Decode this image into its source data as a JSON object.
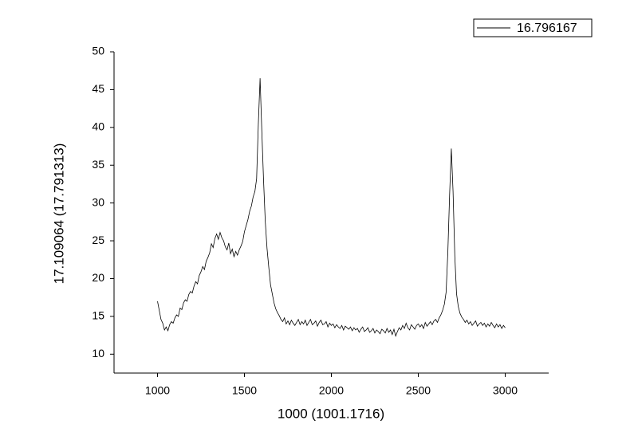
{
  "chart_data": {
    "type": "line",
    "x_label": "1000 (1001.1716)",
    "y_label": "17.109064 (17.791313)",
    "xlim": [
      750,
      3250
    ],
    "ylim": [
      7.5,
      50
    ],
    "xticks": [
      1000,
      1500,
      2000,
      2500,
      3000
    ],
    "yticks": [
      10,
      15,
      20,
      25,
      30,
      35,
      40,
      45,
      50
    ],
    "legend_position": "upper right",
    "x": [
      1000,
      1010,
      1020,
      1030,
      1040,
      1050,
      1060,
      1070,
      1080,
      1090,
      1100,
      1110,
      1120,
      1130,
      1140,
      1150,
      1160,
      1170,
      1180,
      1190,
      1200,
      1210,
      1220,
      1230,
      1240,
      1250,
      1260,
      1270,
      1280,
      1290,
      1300,
      1310,
      1320,
      1330,
      1340,
      1350,
      1360,
      1370,
      1380,
      1390,
      1400,
      1410,
      1420,
      1430,
      1440,
      1450,
      1460,
      1470,
      1480,
      1490,
      1500,
      1510,
      1520,
      1530,
      1540,
      1550,
      1560,
      1570,
      1580,
      1590,
      1600,
      1610,
      1620,
      1630,
      1640,
      1650,
      1660,
      1670,
      1680,
      1690,
      1700,
      1710,
      1720,
      1730,
      1740,
      1750,
      1760,
      1770,
      1780,
      1790,
      1800,
      1810,
      1820,
      1830,
      1840,
      1850,
      1860,
      1870,
      1880,
      1890,
      1900,
      1910,
      1920,
      1930,
      1940,
      1950,
      1960,
      1970,
      1980,
      1990,
      2000,
      2010,
      2020,
      2030,
      2040,
      2050,
      2060,
      2070,
      2080,
      2090,
      2100,
      2110,
      2120,
      2130,
      2140,
      2150,
      2160,
      2170,
      2180,
      2190,
      2200,
      2210,
      2220,
      2230,
      2240,
      2250,
      2260,
      2270,
      2280,
      2290,
      2300,
      2310,
      2320,
      2330,
      2340,
      2350,
      2360,
      2370,
      2380,
      2390,
      2400,
      2410,
      2420,
      2430,
      2440,
      2450,
      2460,
      2470,
      2480,
      2490,
      2500,
      2510,
      2520,
      2530,
      2540,
      2550,
      2560,
      2570,
      2580,
      2590,
      2600,
      2610,
      2620,
      2630,
      2640,
      2650,
      2660,
      2670,
      2680,
      2690,
      2700,
      2710,
      2720,
      2730,
      2740,
      2750,
      2760,
      2770,
      2780,
      2790,
      2800,
      2810,
      2820,
      2830,
      2840,
      2850,
      2860,
      2870,
      2880,
      2890,
      2900,
      2910,
      2920,
      2930,
      2940,
      2950,
      2960,
      2970,
      2980,
      2990,
      3000
    ],
    "series": [
      {
        "name": "16.796167",
        "color": "#000000",
        "values": [
          17,
          15.8,
          14.6,
          14.1,
          13.2,
          13.6,
          13.1,
          13.9,
          14.3,
          14.1,
          14.8,
          15.2,
          15.0,
          16.1,
          15.9,
          16.8,
          17.2,
          17.0,
          17.9,
          18.3,
          18.1,
          19.0,
          19.6,
          19.3,
          20.4,
          20.9,
          21.6,
          21.2,
          22.3,
          22.8,
          23.4,
          24.6,
          24.1,
          25.3,
          25.9,
          25.2,
          26.1,
          25.4,
          25.0,
          24.2,
          23.8,
          24.7,
          23.3,
          23.9,
          22.9,
          23.6,
          23.1,
          23.8,
          24.3,
          24.9,
          26.2,
          27.0,
          27.8,
          28.9,
          29.6,
          30.8,
          31.5,
          33.2,
          40.5,
          46.5,
          39.5,
          33.0,
          27.5,
          24.0,
          21.5,
          19.2,
          18.0,
          16.8,
          16.0,
          15.5,
          15.1,
          14.6,
          14.3,
          14.8,
          14.0,
          14.4,
          13.9,
          14.5,
          14.1,
          13.8,
          14.2,
          14.6,
          13.9,
          14.3,
          14.0,
          14.5,
          13.8,
          14.2,
          14.6,
          13.9,
          14.1,
          14.4,
          13.7,
          14.2,
          14.5,
          13.9,
          14.0,
          14.3,
          13.6,
          14.1,
          13.8,
          14.0,
          13.5,
          13.9,
          13.6,
          13.4,
          13.8,
          13.2,
          13.7,
          13.5,
          13.3,
          13.6,
          13.1,
          13.5,
          13.2,
          13.4,
          12.9,
          13.3,
          13.6,
          13.0,
          13.2,
          13.5,
          12.9,
          13.1,
          13.4,
          12.8,
          13.2,
          13.0,
          12.7,
          13.3,
          13.1,
          12.8,
          13.4,
          12.9,
          13.2,
          12.6,
          13.3,
          12.4,
          13.0,
          13.5,
          13.2,
          13.8,
          13.4,
          14.1,
          13.5,
          13.2,
          13.9,
          13.6,
          13.3,
          13.8,
          14.0,
          13.6,
          13.9,
          13.4,
          14.2,
          13.7,
          14.0,
          14.3,
          13.9,
          14.4,
          14.6,
          14.2,
          14.8,
          15.2,
          15.8,
          16.6,
          18.2,
          23.5,
          31.0,
          37.2,
          31.5,
          23.0,
          18.0,
          16.3,
          15.4,
          14.9,
          14.6,
          14.2,
          14.5,
          14.0,
          14.3,
          13.8,
          14.1,
          14.4,
          13.7,
          14.0,
          14.2,
          13.8,
          14.1,
          13.6,
          14.0,
          13.7,
          14.2,
          13.8,
          13.5,
          14.0,
          13.6,
          13.9,
          13.4,
          13.8,
          13.5
        ]
      }
    ]
  }
}
